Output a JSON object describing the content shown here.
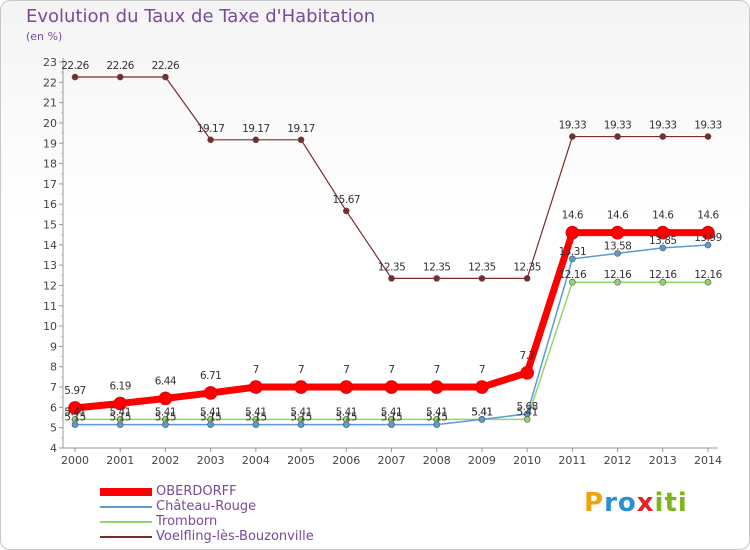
{
  "header": {
    "title": "Evolution du Taux de Taxe d'Habitation",
    "subtitle": "(en %)"
  },
  "logo": {
    "letters": [
      "P",
      "r",
      "o",
      "x",
      "i",
      "t",
      "i"
    ],
    "colors": [
      "#f2a20c",
      "#2a8fd6",
      "#2a8fd6",
      "#e8202a",
      "#7ab51d",
      "#7ab51d",
      "#7ab51d"
    ]
  },
  "chart_data": {
    "type": "line",
    "x": [
      "2000",
      "2001",
      "2002",
      "2003",
      "2004",
      "2005",
      "2006",
      "2007",
      "2008",
      "2009",
      "2010",
      "2011",
      "2012",
      "2013",
      "2014"
    ],
    "ylim": [
      4,
      23
    ],
    "yticks": [
      4,
      5,
      6,
      7,
      8,
      9,
      10,
      11,
      12,
      13,
      14,
      15,
      16,
      17,
      18,
      19,
      20,
      21,
      22,
      23
    ],
    "grid": false,
    "legend_position": "bottom-left",
    "series": [
      {
        "name": "OBERDORFF",
        "color": "#ff0000",
        "values": [
          5.97,
          6.19,
          6.44,
          6.71,
          7,
          7,
          7,
          7,
          7,
          7,
          7.7,
          14.6,
          14.6,
          14.6,
          14.6
        ],
        "labels": [
          "5.97",
          "6.19",
          "6.44",
          "6.71",
          "7",
          "7",
          "7",
          "7",
          "7",
          "7",
          "7.7",
          "14.6",
          "14.6",
          "14.6",
          "14.6"
        ]
      },
      {
        "name": "Château-Rouge",
        "color": "#5b9bd5",
        "values": [
          5.15,
          5.15,
          5.15,
          5.15,
          5.15,
          5.15,
          5.15,
          5.15,
          5.15,
          5.41,
          5.68,
          13.31,
          13.58,
          13.85,
          13.99
        ],
        "labels": [
          "5.15",
          "5.15",
          "5.15",
          "5.15",
          "5.15",
          "5.15",
          "5.15",
          "5.15",
          "5.15",
          "5.41",
          "5.68",
          "13.31",
          "13.58",
          "13.85",
          "13.99"
        ]
      },
      {
        "name": "Tromborn",
        "color": "#90d86a",
        "values": [
          5.41,
          5.41,
          5.41,
          5.41,
          5.41,
          5.41,
          5.41,
          5.41,
          5.41,
          5.41,
          5.41,
          12.16,
          12.16,
          12.16,
          12.16
        ],
        "labels": [
          "5.41",
          "5.41",
          "5.41",
          "5.41",
          "5.41",
          "5.41",
          "5.41",
          "5.41",
          "5.41",
          "5.41",
          "5.41",
          "12.16",
          "12.16",
          "12.16",
          "12.16"
        ]
      },
      {
        "name": "Voelfling-lès-Bouzonville",
        "color": "#7b2b2b",
        "values": [
          22.26,
          22.26,
          22.26,
          19.17,
          19.17,
          19.17,
          15.67,
          12.35,
          12.35,
          12.35,
          12.35,
          19.33,
          19.33,
          19.33,
          19.33
        ],
        "labels": [
          "22.26",
          "22.26",
          "22.26",
          "19.17",
          "19.17",
          "19.17",
          "15.67",
          "12.35",
          "12.35",
          "12.35",
          "12.35",
          "19.33",
          "19.33",
          "19.33",
          "19.33"
        ]
      }
    ]
  }
}
